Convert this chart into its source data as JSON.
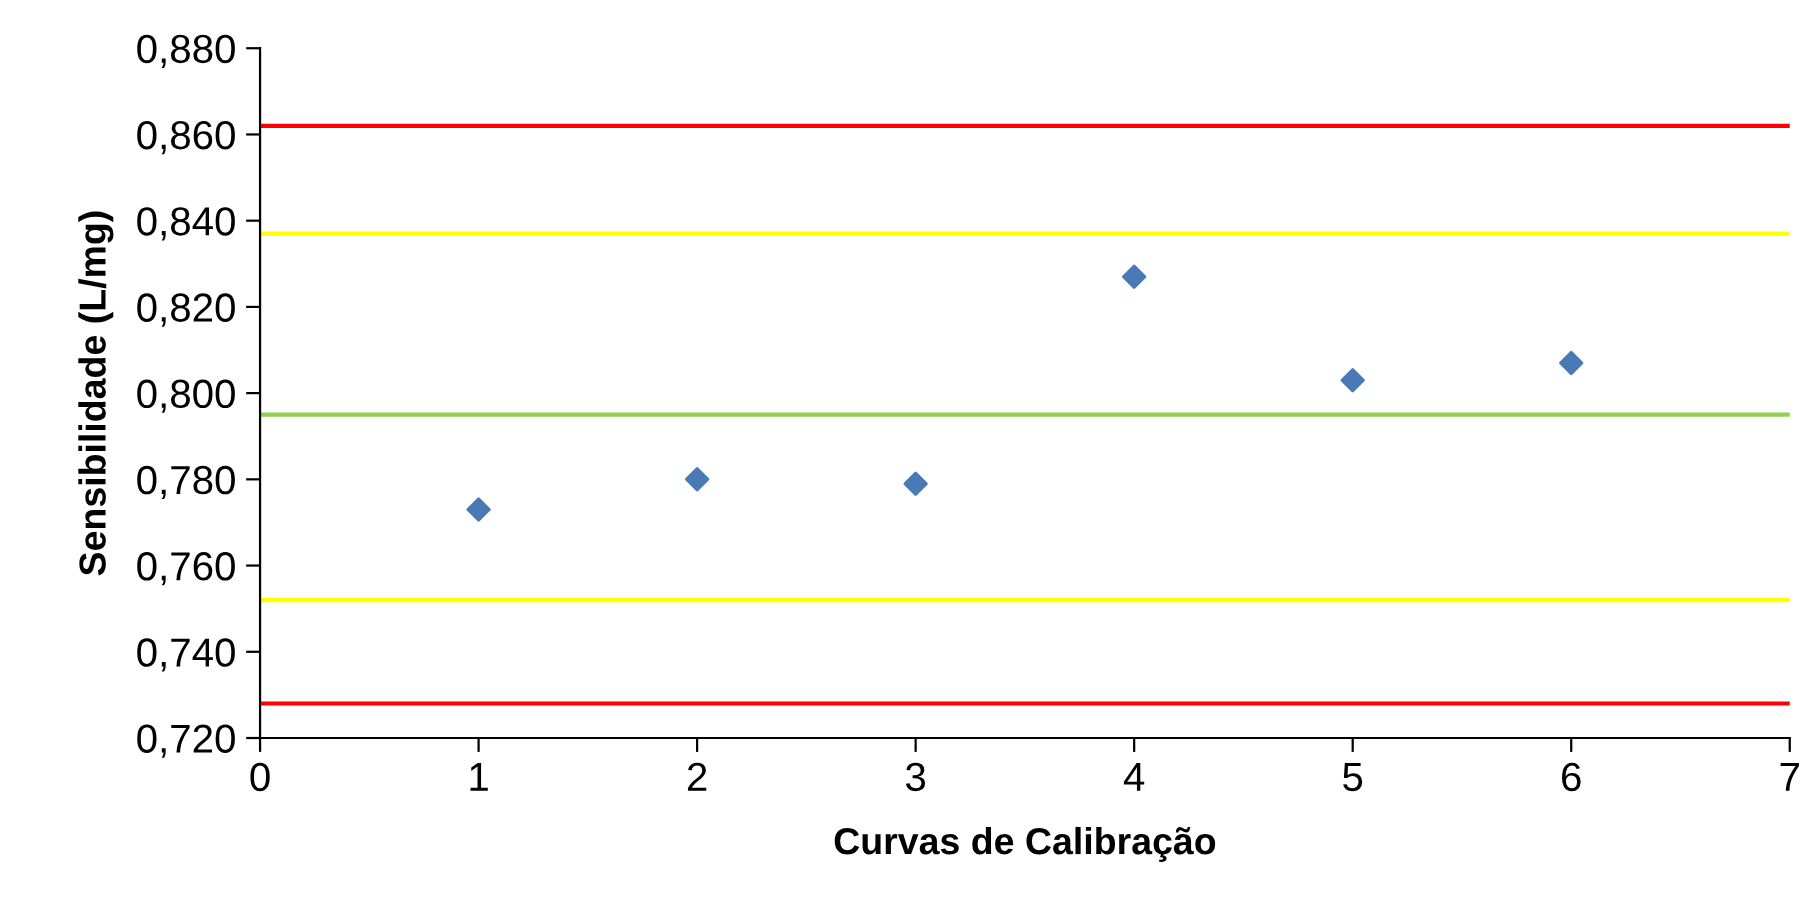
{
  "chart_data": {
    "type": "scatter",
    "xlabel": "Curvas de Calibração",
    "ylabel": "Sensibilidade (L/mg)",
    "x": [
      1,
      2,
      3,
      4,
      5,
      6
    ],
    "series": [
      {
        "color": "#4a7ab5",
        "values": [
          0.773,
          0.78,
          0.779,
          0.827,
          0.803,
          0.807
        ]
      }
    ],
    "marker": "diamond",
    "grid": false,
    "legend": false,
    "xlim": [
      0,
      7
    ],
    "xticks": [
      0,
      1,
      2,
      3,
      4,
      5,
      6,
      7
    ],
    "ylim": [
      0.72,
      0.88
    ],
    "yticks": [
      {
        "value": 0.72,
        "label": "0,720"
      },
      {
        "value": 0.74,
        "label": "0,740"
      },
      {
        "value": 0.76,
        "label": "0,760"
      },
      {
        "value": 0.78,
        "label": "0,780"
      },
      {
        "value": 0.8,
        "label": "0,800"
      },
      {
        "value": 0.82,
        "label": "0,820"
      },
      {
        "value": 0.84,
        "label": "0,840"
      },
      {
        "value": 0.86,
        "label": "0,860"
      },
      {
        "value": 0.88,
        "label": "0,880"
      }
    ],
    "ref_lines": [
      {
        "axis": "y",
        "value": 0.862,
        "color": "#ff0000"
      },
      {
        "axis": "y",
        "value": 0.837,
        "color": "#ffff00"
      },
      {
        "axis": "y",
        "value": 0.795,
        "color": "#92d050"
      },
      {
        "axis": "y",
        "value": 0.752,
        "color": "#ffff00"
      },
      {
        "axis": "y",
        "value": 0.728,
        "color": "#ff0000"
      }
    ]
  }
}
